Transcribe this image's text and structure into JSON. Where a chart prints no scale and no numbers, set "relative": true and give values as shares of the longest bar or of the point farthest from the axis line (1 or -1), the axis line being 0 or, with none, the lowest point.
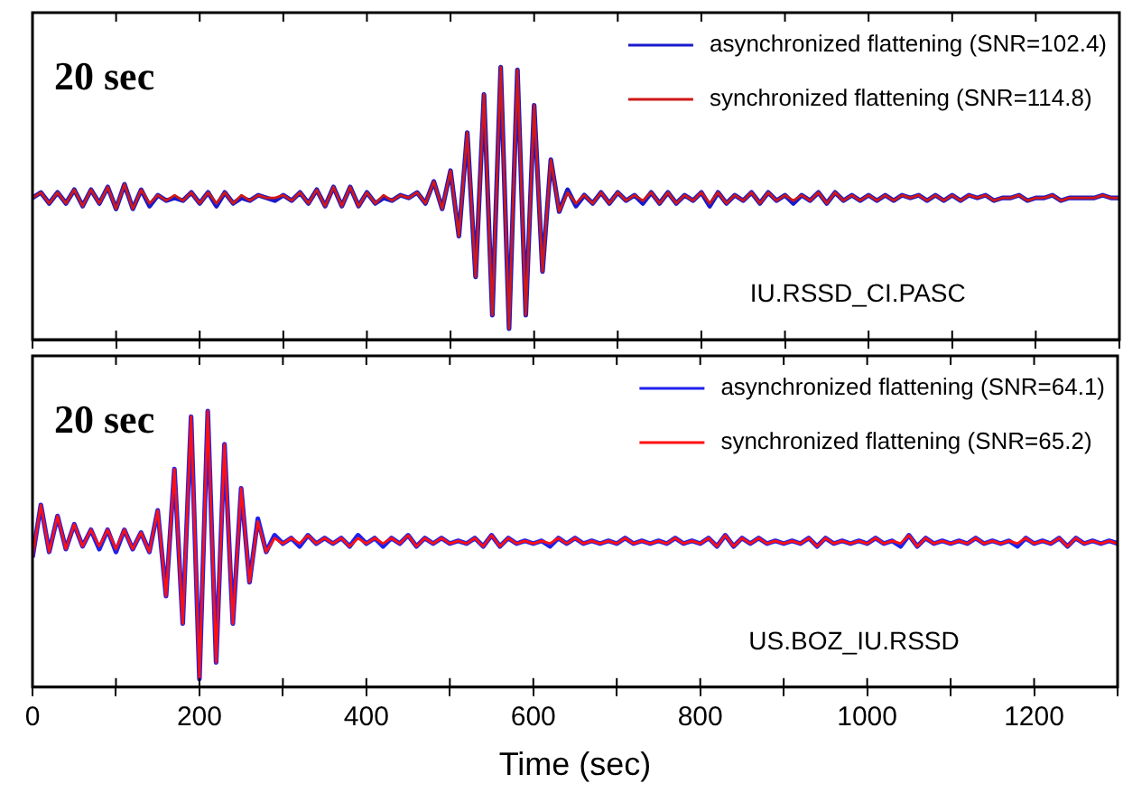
{
  "chart_data": [
    {
      "type": "line",
      "relative": true,
      "legend": "top right",
      "tick_labels": false,
      "annotations": [
        "20 sec",
        "IU.RSSD_CI.PASC"
      ],
      "xlim": [
        0,
        1300
      ],
      "xticks": [
        {
          "value": 0,
          "label": null
        },
        {
          "value": 100,
          "label": null
        },
        {
          "value": 200,
          "label": null
        },
        {
          "value": 300,
          "label": null
        },
        {
          "value": 400,
          "label": null
        },
        {
          "value": 500,
          "label": null
        },
        {
          "value": 600,
          "label": null
        },
        {
          "value": 700,
          "label": null
        },
        {
          "value": 800,
          "label": null
        },
        {
          "value": 900,
          "label": null
        },
        {
          "value": 1000,
          "label": null
        },
        {
          "value": 1100,
          "label": null
        },
        {
          "value": 1200,
          "label": null
        },
        {
          "value": 1300,
          "label": null
        }
      ],
      "x": [
        0,
        10,
        20,
        30,
        40,
        50,
        60,
        70,
        80,
        90,
        100,
        110,
        120,
        130,
        140,
        150,
        160,
        170,
        180,
        190,
        200,
        210,
        220,
        230,
        240,
        250,
        260,
        270,
        280,
        290,
        300,
        310,
        320,
        330,
        340,
        350,
        360,
        370,
        380,
        390,
        400,
        410,
        420,
        430,
        440,
        450,
        460,
        470,
        480,
        490,
        500,
        510,
        520,
        530,
        540,
        550,
        560,
        570,
        580,
        590,
        600,
        610,
        620,
        630,
        640,
        650,
        660,
        670,
        680,
        690,
        700,
        710,
        720,
        730,
        740,
        750,
        760,
        770,
        780,
        790,
        800,
        810,
        820,
        830,
        840,
        850,
        860,
        870,
        880,
        890,
        900,
        910,
        920,
        930,
        940,
        950,
        960,
        970,
        980,
        990,
        1000,
        1010,
        1020,
        1030,
        1040,
        1050,
        1060,
        1070,
        1080,
        1090,
        1100,
        1110,
        1120,
        1130,
        1140,
        1150,
        1160,
        1170,
        1180,
        1190,
        1200,
        1210,
        1220,
        1230,
        1240,
        1250,
        1260,
        1270,
        1280,
        1290,
        1300
      ],
      "series": [
        {
          "name": "asynchronized flattening (SNR=102.4)",
          "color": "#1a1acc",
          "values": [
            0.52,
            0.54,
            0.5,
            0.54,
            0.5,
            0.55,
            0.49,
            0.55,
            0.5,
            0.56,
            0.48,
            0.57,
            0.48,
            0.55,
            0.49,
            0.53,
            0.51,
            0.52,
            0.51,
            0.54,
            0.5,
            0.54,
            0.49,
            0.54,
            0.5,
            0.52,
            0.51,
            0.53,
            0.52,
            0.51,
            0.53,
            0.51,
            0.54,
            0.5,
            0.55,
            0.49,
            0.56,
            0.49,
            0.56,
            0.49,
            0.54,
            0.5,
            0.52,
            0.51,
            0.53,
            0.52,
            0.54,
            0.5,
            0.58,
            0.48,
            0.62,
            0.38,
            0.76,
            0.23,
            0.9,
            0.09,
            1.0,
            0.04,
            0.99,
            0.09,
            0.86,
            0.25,
            0.66,
            0.47,
            0.55,
            0.49,
            0.53,
            0.5,
            0.54,
            0.5,
            0.54,
            0.51,
            0.53,
            0.5,
            0.54,
            0.5,
            0.54,
            0.5,
            0.53,
            0.51,
            0.54,
            0.49,
            0.54,
            0.5,
            0.53,
            0.51,
            0.54,
            0.5,
            0.54,
            0.51,
            0.53,
            0.5,
            0.53,
            0.51,
            0.54,
            0.5,
            0.54,
            0.51,
            0.53,
            0.51,
            0.53,
            0.51,
            0.53,
            0.51,
            0.53,
            0.52,
            0.53,
            0.51,
            0.53,
            0.51,
            0.53,
            0.51,
            0.53,
            0.52,
            0.53,
            0.51,
            0.52,
            0.52,
            0.53,
            0.51,
            0.52,
            0.52,
            0.53,
            0.51,
            0.52,
            0.52,
            0.52,
            0.52,
            0.53,
            0.52,
            0.52
          ]
        },
        {
          "name": "synchronized flattening (SNR=114.8)",
          "color": "#d01818",
          "values": [
            0.52,
            0.54,
            0.5,
            0.54,
            0.5,
            0.55,
            0.49,
            0.55,
            0.5,
            0.56,
            0.48,
            0.57,
            0.48,
            0.55,
            0.5,
            0.53,
            0.51,
            0.53,
            0.51,
            0.54,
            0.5,
            0.54,
            0.5,
            0.54,
            0.5,
            0.53,
            0.51,
            0.53,
            0.52,
            0.52,
            0.53,
            0.51,
            0.54,
            0.5,
            0.55,
            0.49,
            0.56,
            0.49,
            0.56,
            0.49,
            0.54,
            0.5,
            0.53,
            0.51,
            0.53,
            0.52,
            0.54,
            0.5,
            0.58,
            0.48,
            0.62,
            0.38,
            0.76,
            0.23,
            0.9,
            0.09,
            1.0,
            0.04,
            0.99,
            0.09,
            0.86,
            0.25,
            0.66,
            0.47,
            0.54,
            0.5,
            0.53,
            0.5,
            0.54,
            0.5,
            0.54,
            0.51,
            0.53,
            0.51,
            0.54,
            0.5,
            0.54,
            0.5,
            0.53,
            0.51,
            0.54,
            0.5,
            0.54,
            0.5,
            0.53,
            0.51,
            0.54,
            0.5,
            0.54,
            0.51,
            0.53,
            0.51,
            0.53,
            0.51,
            0.54,
            0.5,
            0.54,
            0.51,
            0.53,
            0.51,
            0.53,
            0.51,
            0.53,
            0.51,
            0.53,
            0.52,
            0.53,
            0.51,
            0.53,
            0.51,
            0.53,
            0.51,
            0.53,
            0.52,
            0.53,
            0.51,
            0.52,
            0.52,
            0.53,
            0.51,
            0.52,
            0.52,
            0.53,
            0.51,
            0.52,
            0.52,
            0.52,
            0.52,
            0.53,
            0.52,
            0.52
          ]
        }
      ]
    },
    {
      "type": "line",
      "relative": true,
      "legend": "top right",
      "tick_labels": "x",
      "xlabel": "Time (sec)",
      "annotations": [
        "20 sec",
        "US.BOZ_IU.RSSD"
      ],
      "xlim": [
        0,
        1300
      ],
      "xticks": [
        0,
        {
          "value": 100,
          "label": null
        },
        200,
        {
          "value": 300,
          "label": null
        },
        400,
        {
          "value": 500,
          "label": null
        },
        600,
        {
          "value": 700,
          "label": null
        },
        800,
        {
          "value": 900,
          "label": null
        },
        1000,
        {
          "value": 1100,
          "label": null
        },
        1200,
        {
          "value": 1300,
          "label": null
        }
      ],
      "x": [
        0,
        10,
        20,
        30,
        40,
        50,
        60,
        70,
        80,
        90,
        100,
        110,
        120,
        130,
        140,
        150,
        160,
        170,
        180,
        190,
        200,
        210,
        220,
        230,
        240,
        250,
        260,
        270,
        280,
        290,
        300,
        310,
        320,
        330,
        340,
        350,
        360,
        370,
        380,
        390,
        400,
        410,
        420,
        430,
        440,
        450,
        460,
        470,
        480,
        490,
        500,
        510,
        520,
        530,
        540,
        550,
        560,
        570,
        580,
        590,
        600,
        610,
        620,
        630,
        640,
        650,
        660,
        670,
        680,
        690,
        700,
        710,
        720,
        730,
        740,
        750,
        760,
        770,
        780,
        790,
        800,
        810,
        820,
        830,
        840,
        850,
        860,
        870,
        880,
        890,
        900,
        910,
        920,
        930,
        940,
        950,
        960,
        970,
        980,
        990,
        1000,
        1010,
        1020,
        1030,
        1040,
        1050,
        1060,
        1070,
        1080,
        1090,
        1100,
        1110,
        1120,
        1130,
        1140,
        1150,
        1160,
        1170,
        1180,
        1190,
        1200,
        1210,
        1220,
        1230,
        1240,
        1250,
        1260,
        1270,
        1280,
        1290,
        1300
      ],
      "series": [
        {
          "name": "asynchronized flattening (SNR=64.1)",
          "color": "#2020ee",
          "values": [
            0.47,
            0.66,
            0.49,
            0.62,
            0.5,
            0.59,
            0.51,
            0.57,
            0.5,
            0.57,
            0.49,
            0.57,
            0.5,
            0.56,
            0.49,
            0.64,
            0.33,
            0.79,
            0.23,
            0.98,
            0.03,
            1.0,
            0.09,
            0.88,
            0.23,
            0.72,
            0.38,
            0.61,
            0.49,
            0.55,
            0.52,
            0.54,
            0.51,
            0.55,
            0.52,
            0.54,
            0.52,
            0.54,
            0.51,
            0.55,
            0.52,
            0.54,
            0.51,
            0.54,
            0.52,
            0.55,
            0.51,
            0.54,
            0.52,
            0.54,
            0.52,
            0.53,
            0.52,
            0.54,
            0.51,
            0.55,
            0.51,
            0.54,
            0.52,
            0.53,
            0.52,
            0.53,
            0.51,
            0.54,
            0.52,
            0.54,
            0.52,
            0.53,
            0.52,
            0.53,
            0.52,
            0.54,
            0.52,
            0.53,
            0.52,
            0.53,
            0.52,
            0.54,
            0.52,
            0.53,
            0.52,
            0.54,
            0.51,
            0.55,
            0.51,
            0.54,
            0.52,
            0.54,
            0.52,
            0.53,
            0.52,
            0.53,
            0.52,
            0.54,
            0.51,
            0.54,
            0.52,
            0.53,
            0.52,
            0.53,
            0.52,
            0.54,
            0.52,
            0.53,
            0.51,
            0.55,
            0.51,
            0.54,
            0.52,
            0.53,
            0.52,
            0.53,
            0.52,
            0.54,
            0.52,
            0.53,
            0.52,
            0.53,
            0.51,
            0.54,
            0.52,
            0.53,
            0.52,
            0.54,
            0.51,
            0.54,
            0.52,
            0.53,
            0.52,
            0.53,
            0.52
          ]
        },
        {
          "name": "synchronized flattening (SNR=65.2)",
          "color": "#ff1010",
          "values": [
            0.47,
            0.66,
            0.49,
            0.62,
            0.5,
            0.59,
            0.51,
            0.57,
            0.51,
            0.57,
            0.5,
            0.57,
            0.5,
            0.56,
            0.49,
            0.64,
            0.33,
            0.79,
            0.23,
            0.98,
            0.03,
            1.0,
            0.09,
            0.88,
            0.23,
            0.72,
            0.38,
            0.6,
            0.49,
            0.54,
            0.52,
            0.54,
            0.52,
            0.55,
            0.52,
            0.54,
            0.52,
            0.54,
            0.51,
            0.54,
            0.52,
            0.54,
            0.52,
            0.54,
            0.52,
            0.55,
            0.51,
            0.54,
            0.52,
            0.54,
            0.52,
            0.53,
            0.52,
            0.54,
            0.51,
            0.55,
            0.51,
            0.54,
            0.52,
            0.53,
            0.52,
            0.53,
            0.52,
            0.54,
            0.52,
            0.54,
            0.52,
            0.53,
            0.52,
            0.53,
            0.52,
            0.54,
            0.52,
            0.53,
            0.52,
            0.53,
            0.52,
            0.54,
            0.52,
            0.53,
            0.52,
            0.54,
            0.51,
            0.55,
            0.51,
            0.54,
            0.52,
            0.54,
            0.52,
            0.53,
            0.52,
            0.53,
            0.52,
            0.54,
            0.51,
            0.54,
            0.52,
            0.53,
            0.52,
            0.53,
            0.52,
            0.54,
            0.52,
            0.53,
            0.52,
            0.55,
            0.51,
            0.54,
            0.52,
            0.53,
            0.52,
            0.53,
            0.52,
            0.54,
            0.52,
            0.53,
            0.52,
            0.53,
            0.52,
            0.54,
            0.52,
            0.53,
            0.52,
            0.54,
            0.51,
            0.54,
            0.52,
            0.53,
            0.52,
            0.53,
            0.52
          ]
        }
      ]
    }
  ]
}
